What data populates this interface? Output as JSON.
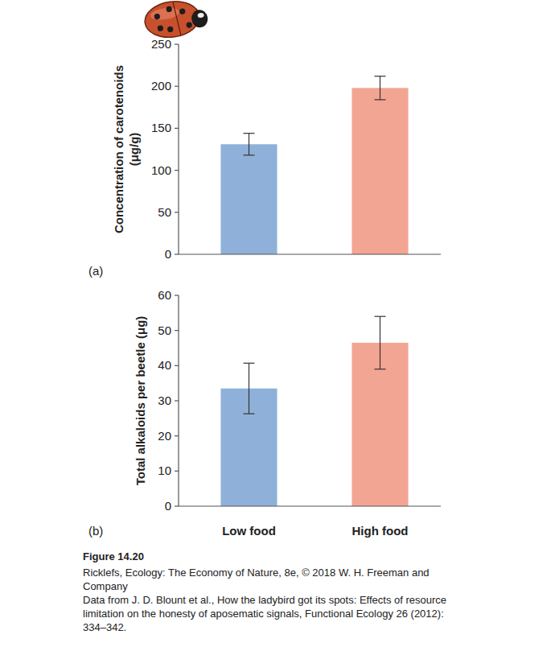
{
  "chart_data": [
    {
      "type": "bar",
      "label": "(a)",
      "y_label": "Concentration of carotenoids (μg/g)",
      "categories": [
        null,
        null
      ],
      "values": [
        131,
        198
      ],
      "errors": [
        13,
        14
      ],
      "colors": [
        "#8fb1d9",
        "#f3a593"
      ],
      "ylim": [
        0,
        250
      ],
      "yticks": [
        0,
        50,
        100,
        150,
        200,
        250
      ],
      "grid": false,
      "tick_labels": "y"
    },
    {
      "type": "bar",
      "label": "(b)",
      "y_label": "Total alkaloids per beetle (μg)",
      "categories": [
        "Low food",
        "High food"
      ],
      "values": [
        33.5,
        46.5
      ],
      "errors": [
        7.2,
        7.5
      ],
      "colors": [
        "#8fb1d9",
        "#f3a593"
      ],
      "ylim": [
        0,
        60
      ],
      "yticks": [
        0,
        10,
        20,
        30,
        40,
        50,
        60
      ],
      "grid": false
    }
  ],
  "figure": {
    "label": "Figure 14.20",
    "credit": "Ricklefs, Ecology: The Economy of Nature, 8e, © 2018 W. H. Freeman and Company",
    "source": "Data from J. D. Blount et al., How the ladybird got its spots: Effects of resource limitation on the honesty of aposematic signals, Functional Ecology 26 (2012): 334–342."
  }
}
